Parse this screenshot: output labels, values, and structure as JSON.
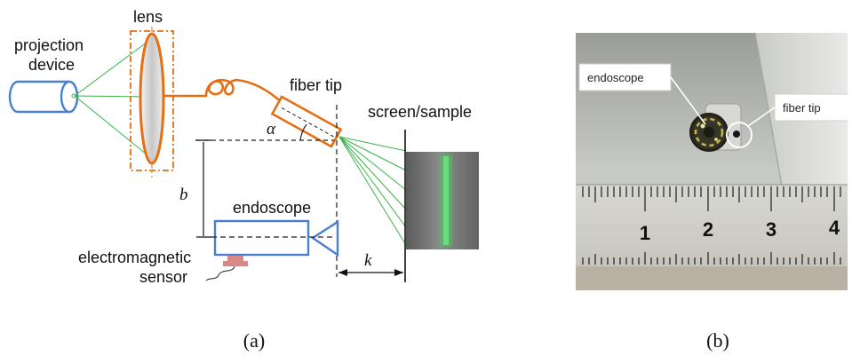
{
  "diagram": {
    "labels": {
      "lens": "lens",
      "projection_line1": "projection",
      "projection_line2": "device",
      "fiber_tip": "fiber tip",
      "screen_sample": "screen/sample",
      "alpha": "α",
      "b": "b",
      "endoscope": "endoscope",
      "em_line1": "electromagnetic",
      "em_line2": "sensor",
      "k": "k"
    },
    "caption": "(a)"
  },
  "photo": {
    "labels": {
      "endoscope": "endoscope",
      "fiber_tip": "fiber tip"
    },
    "ruler_numbers": [
      "1",
      "2",
      "3",
      "4"
    ],
    "caption": "(b)"
  },
  "colors": {
    "blue_outline": "#4a7fd0",
    "orange": "#e46f14",
    "green_beam": "#3bb54a",
    "sensor_pink": "#d9888a"
  }
}
